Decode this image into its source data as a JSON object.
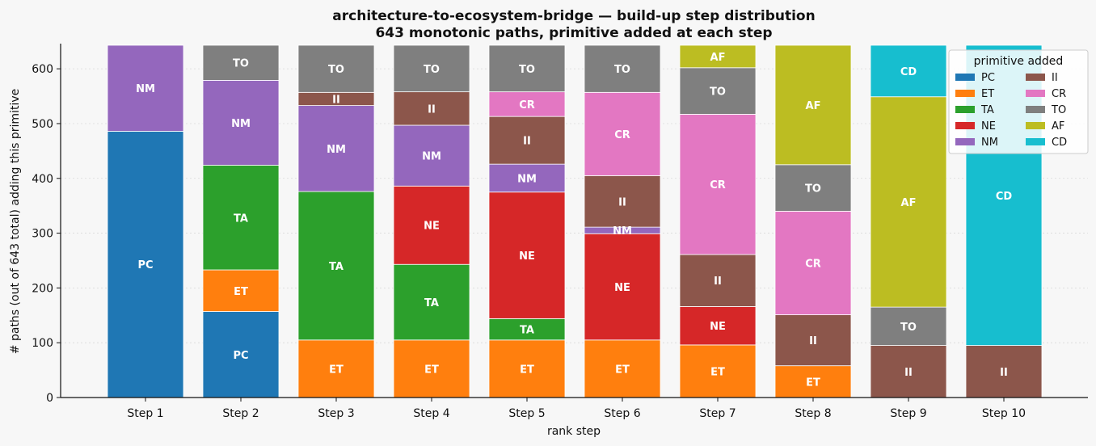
{
  "chart_data": {
    "type": "bar",
    "stacked": true,
    "title": "architecture-to-ecosystem-bridge — build-up step distribution",
    "subtitle": "643 monotonic paths, primitive added at each step",
    "xlabel": "rank step",
    "ylabel": "# paths (out of 643 total) adding this primitive",
    "ylim": [
      0,
      643
    ],
    "yticks": [
      0,
      100,
      200,
      300,
      400,
      500,
      600
    ],
    "grid": "horizontal dotted",
    "categories": [
      "Step 1",
      "Step 2",
      "Step 3",
      "Step 4",
      "Step 5",
      "Step 6",
      "Step 7",
      "Step 8",
      "Step 9",
      "Step 10"
    ],
    "legend": {
      "title": "primitive added",
      "placement": "top-right",
      "entries": [
        "PC",
        "ET",
        "TA",
        "NE",
        "NM",
        "II",
        "CR",
        "TO",
        "AF",
        "CD"
      ]
    },
    "colors": {
      "PC": "#1f77b4",
      "ET": "#ff7f0e",
      "TA": "#2ca02c",
      "NE": "#d62728",
      "NM": "#9467bd",
      "II": "#8c564b",
      "CR": "#e377c2",
      "TO": "#7f7f7f",
      "AF": "#bcbd22",
      "CD": "#17becf"
    },
    "stack_order": [
      "PC",
      "ET",
      "TA",
      "NE",
      "NM",
      "II",
      "CR",
      "TO",
      "AF",
      "CD"
    ],
    "series": [
      {
        "name": "PC",
        "values": [
          486,
          157,
          0,
          0,
          0,
          0,
          0,
          0,
          0,
          0
        ]
      },
      {
        "name": "ET",
        "values": [
          0,
          76,
          105,
          105,
          105,
          105,
          96,
          58,
          0,
          0
        ]
      },
      {
        "name": "TA",
        "values": [
          0,
          191,
          271,
          138,
          39,
          0,
          0,
          0,
          0,
          0
        ]
      },
      {
        "name": "NE",
        "values": [
          0,
          0,
          0,
          143,
          231,
          194,
          70,
          0,
          0,
          0
        ]
      },
      {
        "name": "NM",
        "values": [
          157,
          155,
          157,
          111,
          51,
          12,
          0,
          0,
          0,
          0
        ]
      },
      {
        "name": "II",
        "values": [
          0,
          0,
          24,
          61,
          87,
          94,
          95,
          93,
          95,
          95
        ]
      },
      {
        "name": "CR",
        "values": [
          0,
          0,
          0,
          0,
          45,
          152,
          256,
          189,
          0,
          0
        ]
      },
      {
        "name": "TO",
        "values": [
          0,
          64,
          86,
          85,
          85,
          86,
          85,
          85,
          70,
          0
        ]
      },
      {
        "name": "AF",
        "values": [
          0,
          0,
          0,
          0,
          0,
          0,
          41,
          218,
          384,
          0
        ]
      },
      {
        "name": "CD",
        "values": [
          0,
          0,
          0,
          0,
          0,
          0,
          0,
          0,
          94,
          548
        ]
      }
    ]
  }
}
